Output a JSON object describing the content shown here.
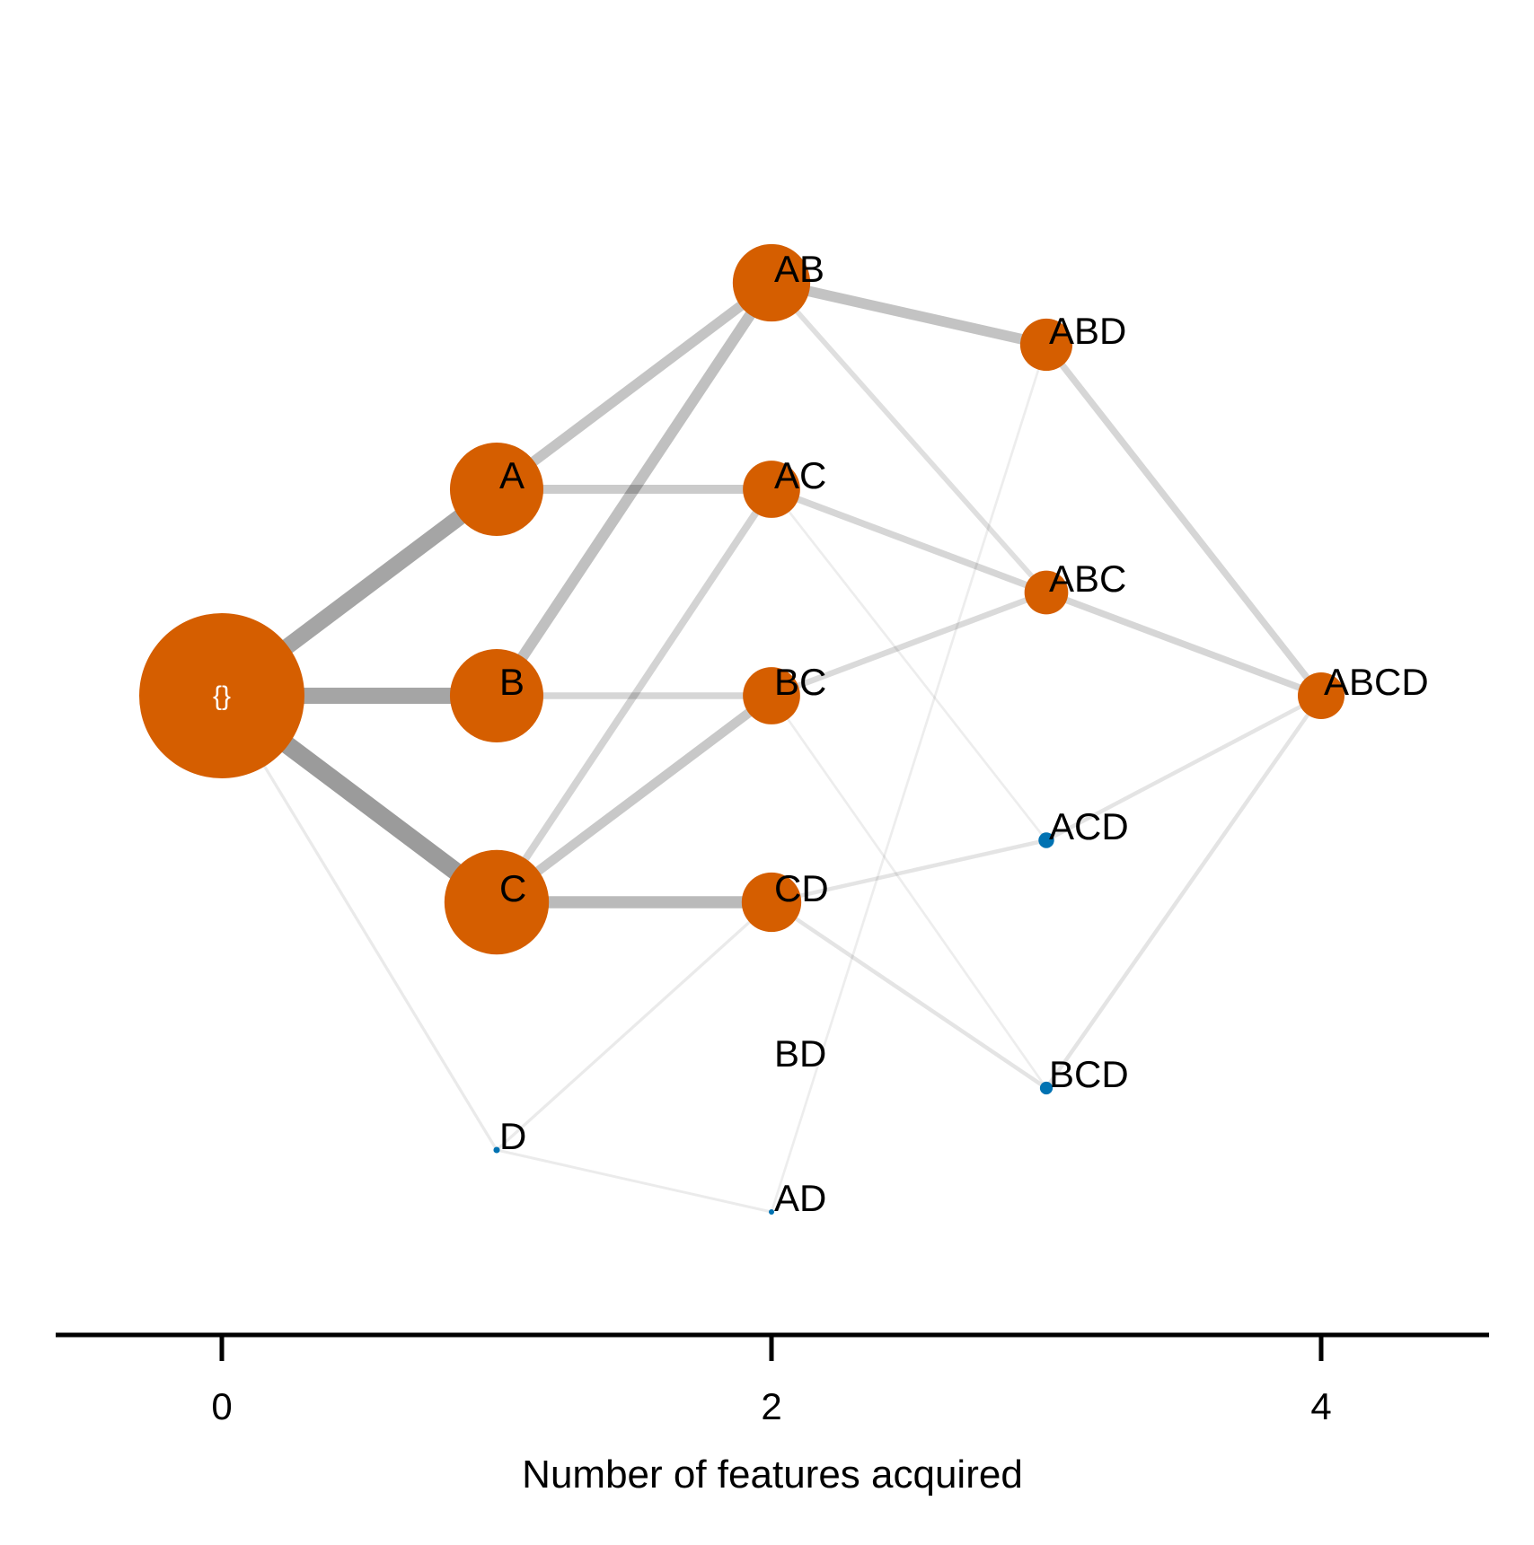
{
  "chart_data": {
    "type": "diagram",
    "xlabel": "Number of features acquired",
    "x_ticks": [
      0,
      2,
      4
    ],
    "colors": {
      "high": "#D55E00",
      "low": "#0072B2",
      "edge": "#000000"
    },
    "nodes": [
      {
        "id": "{}",
        "label": "{}",
        "level": 0,
        "row": 0,
        "weight": 1.0,
        "color": "high"
      },
      {
        "id": "A",
        "label": "A",
        "level": 1,
        "row": -1,
        "weight": 0.32,
        "color": "high"
      },
      {
        "id": "B",
        "label": "B",
        "level": 1,
        "row": 0,
        "weight": 0.32,
        "color": "high"
      },
      {
        "id": "C",
        "label": "C",
        "level": 1,
        "row": 1,
        "weight": 0.4,
        "color": "high"
      },
      {
        "id": "D",
        "label": "D",
        "level": 1,
        "row": 2.2,
        "weight": 0.0015,
        "color": "low"
      },
      {
        "id": "AB",
        "label": "AB",
        "level": 2,
        "row": -2,
        "weight": 0.22,
        "color": "high"
      },
      {
        "id": "AC",
        "label": "AC",
        "level": 2,
        "row": -1,
        "weight": 0.12,
        "color": "high"
      },
      {
        "id": "BC",
        "label": "BC",
        "level": 2,
        "row": 0,
        "weight": 0.12,
        "color": "high"
      },
      {
        "id": "CD",
        "label": "CD",
        "level": 2,
        "row": 1,
        "weight": 0.13,
        "color": "high"
      },
      {
        "id": "BD",
        "label": "BD",
        "level": 2,
        "row": 1.8,
        "weight": 0,
        "color": "low"
      },
      {
        "id": "AD",
        "label": "AD",
        "level": 2,
        "row": 2.5,
        "weight": 0.0008,
        "color": "low"
      },
      {
        "id": "ABD",
        "label": "ABD",
        "level": 3,
        "row": -1.7,
        "weight": 0.1,
        "color": "high"
      },
      {
        "id": "ABC",
        "label": "ABC",
        "level": 3,
        "row": -0.5,
        "weight": 0.07,
        "color": "high"
      },
      {
        "id": "ACD",
        "label": "ACD",
        "level": 3,
        "row": 0.7,
        "weight": 0.009,
        "color": "low"
      },
      {
        "id": "BCD",
        "label": "BCD",
        "level": 3,
        "row": 1.9,
        "weight": 0.006,
        "color": "low"
      },
      {
        "id": "ABCD",
        "label": "ABCD",
        "level": 4,
        "row": 0,
        "weight": 0.08,
        "color": "high"
      }
    ],
    "edges": [
      {
        "from": "{}",
        "to": "A",
        "weight": 0.55
      },
      {
        "from": "{}",
        "to": "B",
        "weight": 0.55
      },
      {
        "from": "{}",
        "to": "C",
        "weight": 0.62
      },
      {
        "from": "{}",
        "to": "D",
        "weight": 0.06
      },
      {
        "from": "A",
        "to": "AB",
        "weight": 0.33
      },
      {
        "from": "A",
        "to": "AC",
        "weight": 0.28
      },
      {
        "from": "B",
        "to": "AB",
        "weight": 0.36
      },
      {
        "from": "B",
        "to": "BC",
        "weight": 0.2
      },
      {
        "from": "C",
        "to": "AC",
        "weight": 0.22
      },
      {
        "from": "C",
        "to": "BC",
        "weight": 0.3
      },
      {
        "from": "C",
        "to": "CD",
        "weight": 0.4
      },
      {
        "from": "D",
        "to": "CD",
        "weight": 0.06
      },
      {
        "from": "D",
        "to": "AD",
        "weight": 0.05
      },
      {
        "from": "AB",
        "to": "ABD",
        "weight": 0.34
      },
      {
        "from": "AB",
        "to": "ABC",
        "weight": 0.14
      },
      {
        "from": "AC",
        "to": "ABC",
        "weight": 0.2
      },
      {
        "from": "AC",
        "to": "ACD",
        "weight": 0.04
      },
      {
        "from": "BC",
        "to": "ABC",
        "weight": 0.17
      },
      {
        "from": "BC",
        "to": "BCD",
        "weight": 0.04
      },
      {
        "from": "CD",
        "to": "ACD",
        "weight": 0.1
      },
      {
        "from": "CD",
        "to": "BCD",
        "weight": 0.1
      },
      {
        "from": "AD",
        "to": "ABD",
        "weight": 0.04
      },
      {
        "from": "ABD",
        "to": "ABCD",
        "weight": 0.2
      },
      {
        "from": "ABC",
        "to": "ABCD",
        "weight": 0.2
      },
      {
        "from": "ACD",
        "to": "ABCD",
        "weight": 0.1
      },
      {
        "from": "BCD",
        "to": "ABCD",
        "weight": 0.1
      }
    ]
  }
}
